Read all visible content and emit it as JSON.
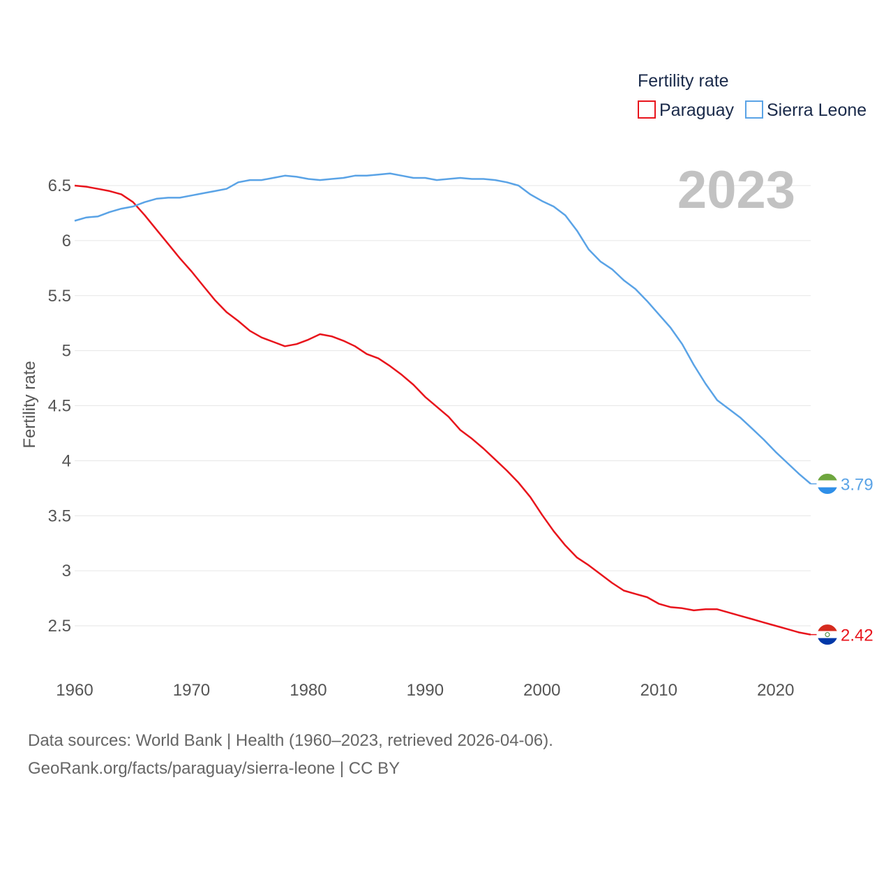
{
  "chart_data": {
    "type": "line",
    "title": "",
    "year_label": "2023",
    "ylabel": "Fertility rate",
    "xlabel": "",
    "xlim": [
      1960,
      2023
    ],
    "ylim": [
      2.2,
      6.8
    ],
    "x_ticks": [
      1960,
      1970,
      1980,
      1990,
      2000,
      2010,
      2020
    ],
    "y_ticks": [
      2.5,
      3,
      3.5,
      4,
      4.5,
      5,
      5.5,
      6,
      6.5
    ],
    "y_tick_labels": [
      "2.5",
      "3",
      "3.5",
      "4",
      "4.5",
      "5",
      "5.5",
      "6",
      "6.5"
    ],
    "legend": {
      "title": "Fertility rate",
      "position": "top-right",
      "entries": [
        "Paraguay",
        "Sierra Leone"
      ]
    },
    "x": [
      1960,
      1961,
      1962,
      1963,
      1964,
      1965,
      1966,
      1967,
      1968,
      1969,
      1970,
      1971,
      1972,
      1973,
      1974,
      1975,
      1976,
      1977,
      1978,
      1979,
      1980,
      1981,
      1982,
      1983,
      1984,
      1985,
      1986,
      1987,
      1988,
      1989,
      1990,
      1991,
      1992,
      1993,
      1994,
      1995,
      1996,
      1997,
      1998,
      1999,
      2000,
      2001,
      2002,
      2003,
      2004,
      2005,
      2006,
      2007,
      2008,
      2009,
      2010,
      2011,
      2012,
      2013,
      2014,
      2015,
      2016,
      2017,
      2018,
      2019,
      2020,
      2021,
      2022,
      2023
    ],
    "series": [
      {
        "name": "Paraguay",
        "color": "#e8141c",
        "end_label": "2.42",
        "values": [
          6.5,
          6.49,
          6.47,
          6.45,
          6.42,
          6.35,
          6.23,
          6.1,
          5.97,
          5.84,
          5.72,
          5.59,
          5.46,
          5.35,
          5.27,
          5.18,
          5.12,
          5.08,
          5.04,
          5.06,
          5.1,
          5.15,
          5.13,
          5.09,
          5.04,
          4.97,
          4.93,
          4.86,
          4.78,
          4.69,
          4.58,
          4.49,
          4.4,
          4.28,
          4.2,
          4.11,
          4.01,
          3.91,
          3.8,
          3.67,
          3.51,
          3.36,
          3.23,
          3.12,
          3.05,
          2.97,
          2.89,
          2.82,
          2.79,
          2.76,
          2.7,
          2.67,
          2.66,
          2.64,
          2.65,
          2.65,
          2.62,
          2.59,
          2.56,
          2.53,
          2.5,
          2.47,
          2.44,
          2.42
        ]
      },
      {
        "name": "Sierra Leone",
        "color": "#5aa3e6",
        "end_label": "3.79",
        "values": [
          6.18,
          6.21,
          6.22,
          6.26,
          6.29,
          6.31,
          6.35,
          6.38,
          6.39,
          6.39,
          6.41,
          6.43,
          6.45,
          6.47,
          6.53,
          6.55,
          6.55,
          6.57,
          6.59,
          6.58,
          6.56,
          6.55,
          6.56,
          6.57,
          6.59,
          6.59,
          6.6,
          6.61,
          6.59,
          6.57,
          6.57,
          6.55,
          6.56,
          6.57,
          6.56,
          6.56,
          6.55,
          6.53,
          6.5,
          6.42,
          6.36,
          6.31,
          6.23,
          6.09,
          5.92,
          5.81,
          5.74,
          5.64,
          5.56,
          5.45,
          5.33,
          5.21,
          5.06,
          4.87,
          4.7,
          4.55,
          4.47,
          4.39,
          4.29,
          4.19,
          4.08,
          3.98,
          3.88,
          3.79
        ]
      }
    ]
  },
  "footer": {
    "line1": "Data sources: World Bank | Health (1960–2023, retrieved 2026-04-06).",
    "line2": "GeoRank.org/facts/paraguay/sierra-leone | CC BY"
  }
}
